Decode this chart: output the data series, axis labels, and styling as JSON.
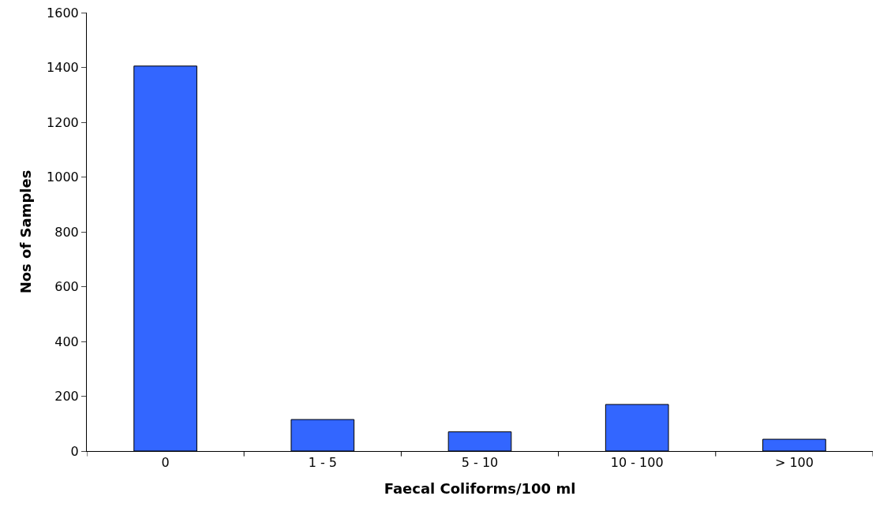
{
  "chart_data": {
    "type": "bar",
    "xlabel": "Faecal Coliforms/100 ml",
    "ylabel": "Nos of Samples",
    "categories": [
      "0",
      "1 - 5",
      "5 - 10",
      "10 - 100",
      "> 100"
    ],
    "values": [
      1405,
      115,
      70,
      170,
      43
    ],
    "color": "#3366ff",
    "ylim": [
      0,
      1600
    ],
    "yticks": [
      0,
      200,
      400,
      600,
      800,
      1000,
      1200,
      1400,
      1600
    ],
    "grid": false
  }
}
